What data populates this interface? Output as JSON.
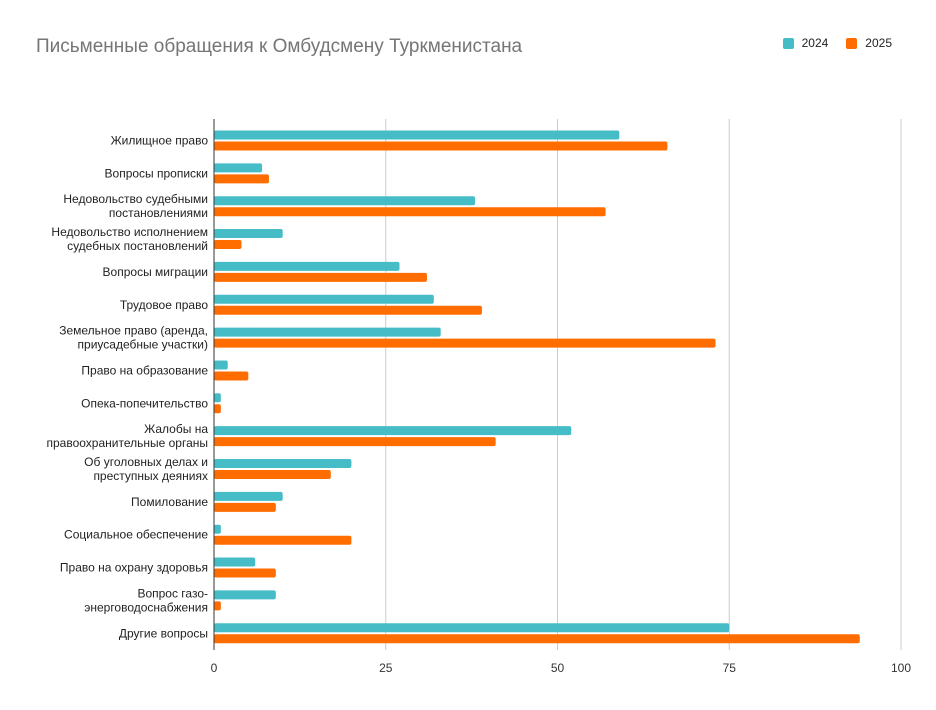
{
  "colors": {
    "series_2024": "#46bdc6",
    "series_2025": "#ff6d01",
    "grid": "#cccccc",
    "axis": "#333333"
  },
  "chart_data": {
    "type": "bar",
    "orientation": "horizontal",
    "title": "Письменные обращения к Омбудсмену Туркменистана",
    "legend_position": "top-right",
    "grid": true,
    "xlim": [
      0,
      100
    ],
    "xticks": [
      "0",
      "25",
      "50",
      "75",
      "100"
    ],
    "categories": [
      [
        "Жилищное право"
      ],
      [
        "Вопросы прописки"
      ],
      [
        "Недовольство судебными",
        "постановлениями"
      ],
      [
        "Недовольство исполнением",
        "судебных постановлений"
      ],
      [
        "Вопросы миграции"
      ],
      [
        "Трудовое право"
      ],
      [
        "Земельное право (аренда,",
        "приусадебные участки)"
      ],
      [
        "Право на образование"
      ],
      [
        "Опека-попечительство"
      ],
      [
        "Жалобы на",
        "правоохранительные органы"
      ],
      [
        "Об уголовных делах и",
        "преступных деяниях"
      ],
      [
        "Помилование"
      ],
      [
        "Социальное обеспечение"
      ],
      [
        "Право на охрану здоровья"
      ],
      [
        "Вопрос газо-",
        "энерговодоснабжения"
      ],
      [
        "Другие вопросы"
      ]
    ],
    "series": [
      {
        "name": "2024",
        "color": "#46bdc6",
        "values": [
          59,
          7,
          38,
          10,
          27,
          32,
          33,
          2,
          1,
          52,
          20,
          10,
          1,
          6,
          9,
          75
        ]
      },
      {
        "name": "2025",
        "color": "#ff6d01",
        "values": [
          66,
          8,
          57,
          4,
          31,
          39,
          73,
          5,
          1,
          41,
          17,
          9,
          20,
          9,
          1,
          94
        ]
      }
    ]
  }
}
